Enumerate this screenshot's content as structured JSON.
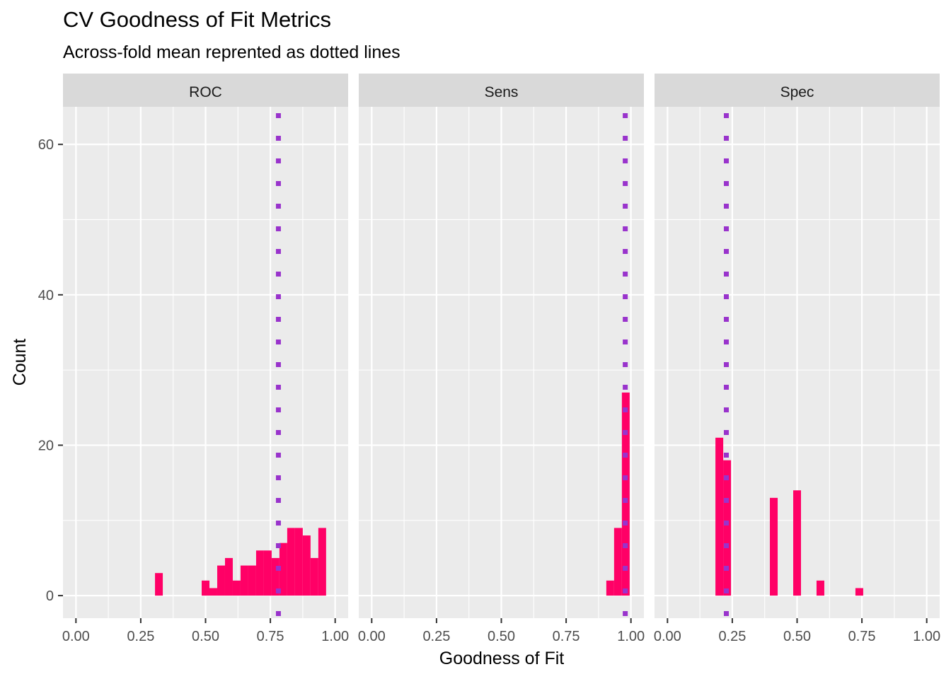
{
  "chart_data": {
    "type": "bar",
    "title": "CV Goodness of Fit Metrics",
    "subtitle": "Across-fold mean reprented as dotted lines",
    "xlabel": "Goodness of Fit",
    "ylabel": "Count",
    "xlim": [
      -0.05,
      1.05
    ],
    "ylim": [
      -3,
      65
    ],
    "x_ticks": [
      0,
      0.25,
      0.5,
      0.75,
      1
    ],
    "x_tick_labels": [
      "0.00",
      "0.25",
      "0.50",
      "0.75",
      "1.00"
    ],
    "y_ticks": [
      0,
      20,
      40,
      60
    ],
    "y_tick_labels": [
      "0",
      "20",
      "40",
      "60"
    ],
    "bin_width": 0.03,
    "grid": true,
    "colors": {
      "bar": "#FF0066",
      "mean_line": "#9933CC",
      "panel": "#EBEBEB",
      "strip": "#D9D9D9"
    },
    "panels": [
      {
        "label": "ROC",
        "mean": 0.781,
        "bins": [
          {
            "x": 0.32,
            "count": 3
          },
          {
            "x": 0.5,
            "count": 2
          },
          {
            "x": 0.53,
            "count": 1
          },
          {
            "x": 0.56,
            "count": 4
          },
          {
            "x": 0.59,
            "count": 5
          },
          {
            "x": 0.62,
            "count": 2
          },
          {
            "x": 0.65,
            "count": 4
          },
          {
            "x": 0.68,
            "count": 4
          },
          {
            "x": 0.71,
            "count": 6
          },
          {
            "x": 0.74,
            "count": 6
          },
          {
            "x": 0.77,
            "count": 5
          },
          {
            "x": 0.8,
            "count": 7
          },
          {
            "x": 0.83,
            "count": 9
          },
          {
            "x": 0.86,
            "count": 9
          },
          {
            "x": 0.89,
            "count": 8
          },
          {
            "x": 0.92,
            "count": 5
          },
          {
            "x": 0.95,
            "count": 9
          }
        ]
      },
      {
        "label": "Sens",
        "mean": 0.978,
        "bins": [
          {
            "x": 0.92,
            "count": 2
          },
          {
            "x": 0.95,
            "count": 9
          },
          {
            "x": 0.98,
            "count": 27
          }
        ]
      },
      {
        "label": "Spec",
        "mean": 0.227,
        "bins": [
          {
            "x": 0.2,
            "count": 21
          },
          {
            "x": 0.23,
            "count": 18
          },
          {
            "x": 0.41,
            "count": 13
          },
          {
            "x": 0.5,
            "count": 14
          },
          {
            "x": 0.59,
            "count": 2
          },
          {
            "x": 0.74,
            "count": 1
          }
        ]
      }
    ]
  }
}
